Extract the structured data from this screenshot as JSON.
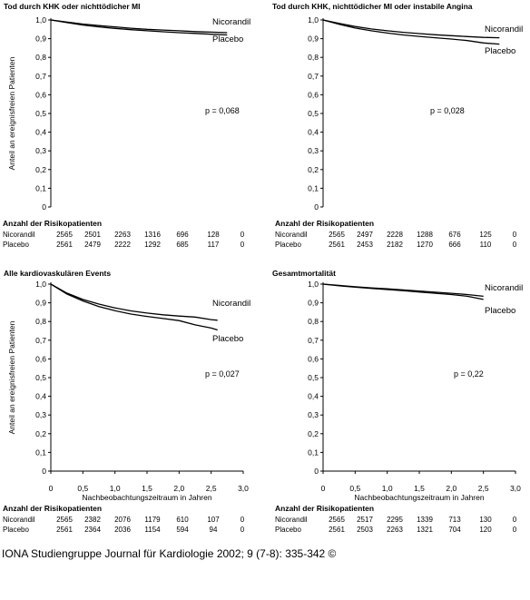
{
  "footer": "IONA Studiengruppe Journal für Kardiologie 2002; 9 (7-8): 335-342 ©",
  "chart_data": [
    {
      "type": "line",
      "title": "Tod durch KHK oder nichttödicher MI",
      "ylabel": "Anteil an ereignisfreien Patienten",
      "xlabel": "",
      "ylim": [
        0,
        1.0
      ],
      "xlim": [
        0,
        3.0
      ],
      "y_ticks": [
        "0",
        "0,1",
        "0,2",
        "0,3",
        "0,4",
        "0,5",
        "0,6",
        "0,7",
        "0,8",
        "0,9",
        "1,0"
      ],
      "x_ticks": [],
      "p_value": "p = 0,068",
      "series": [
        {
          "name": "Nicorandil",
          "x": [
            0,
            0.25,
            0.5,
            0.75,
            1.0,
            1.25,
            1.5,
            1.75,
            2.0,
            2.25,
            2.5,
            2.75
          ],
          "y": [
            1.0,
            0.989,
            0.978,
            0.97,
            0.963,
            0.956,
            0.95,
            0.946,
            0.942,
            0.938,
            0.935,
            0.932
          ]
        },
        {
          "name": "Placebo",
          "x": [
            0,
            0.25,
            0.5,
            0.75,
            1.0,
            1.25,
            1.5,
            1.75,
            2.0,
            2.25,
            2.5,
            2.75
          ],
          "y": [
            1.0,
            0.986,
            0.973,
            0.963,
            0.955,
            0.948,
            0.942,
            0.937,
            0.932,
            0.928,
            0.924,
            0.92
          ]
        }
      ],
      "risk_table": {
        "heading": "Anzahl der Risikopatienten",
        "rows": [
          {
            "label": "Nicorandil",
            "values": [
              "2565",
              "2501",
              "2263",
              "1316",
              "696",
              "128",
              "0"
            ]
          },
          {
            "label": "Placebo",
            "values": [
              "2561",
              "2479",
              "2222",
              "1292",
              "685",
              "117",
              "0"
            ]
          }
        ]
      }
    },
    {
      "type": "line",
      "title": "Tod durch KHK, nichttödicher MI oder instabile Angina",
      "ylabel": "",
      "xlabel": "",
      "ylim": [
        0,
        1.0
      ],
      "xlim": [
        0,
        3.0
      ],
      "y_ticks": [
        "0",
        "0,1",
        "0,2",
        "0,3",
        "0,4",
        "0,5",
        "0,6",
        "0,7",
        "0,8",
        "0,9",
        "1,0"
      ],
      "x_ticks": [],
      "p_value": "p = 0,028",
      "series": [
        {
          "name": "Nicorandil",
          "x": [
            0,
            0.25,
            0.5,
            0.75,
            1.0,
            1.25,
            1.5,
            1.75,
            2.0,
            2.25,
            2.5,
            2.75
          ],
          "y": [
            1.0,
            0.982,
            0.965,
            0.952,
            0.942,
            0.934,
            0.927,
            0.921,
            0.916,
            0.911,
            0.907,
            0.905
          ]
        },
        {
          "name": "Placebo",
          "x": [
            0,
            0.25,
            0.5,
            0.75,
            1.0,
            1.25,
            1.5,
            1.75,
            2.0,
            2.25,
            2.5,
            2.75
          ],
          "y": [
            1.0,
            0.977,
            0.957,
            0.942,
            0.93,
            0.92,
            0.912,
            0.905,
            0.898,
            0.89,
            0.877,
            0.871
          ]
        }
      ],
      "risk_table": {
        "heading": "Anzahl der Risikopatienten",
        "rows": [
          {
            "label": "Nicorandil",
            "values": [
              "2565",
              "2497",
              "2228",
              "1288",
              "676",
              "125",
              "0"
            ]
          },
          {
            "label": "Placebo",
            "values": [
              "2561",
              "2453",
              "2182",
              "1270",
              "666",
              "110",
              "0"
            ]
          }
        ]
      }
    },
    {
      "type": "line",
      "title": "Alle kardiovaskulären Events",
      "ylabel": "Anteil an ereignisfreien Patienten",
      "xlabel": "Nachbeobachtungszeitraum in Jahren",
      "ylim": [
        0,
        1.0
      ],
      "xlim": [
        0,
        3.0
      ],
      "y_ticks": [
        "0",
        "0,1",
        "0,2",
        "0,3",
        "0,4",
        "0,5",
        "0,6",
        "0,7",
        "0,8",
        "0,9",
        "1,0"
      ],
      "x_ticks": [
        "0",
        "0,5",
        "1,0",
        "1,5",
        "2,0",
        "2,5",
        "3,0"
      ],
      "p_value": "p = 0,027",
      "series": [
        {
          "name": "Nicorandil",
          "x": [
            0,
            0.25,
            0.5,
            0.75,
            1.0,
            1.25,
            1.5,
            1.75,
            2.0,
            2.25,
            2.5,
            2.6
          ],
          "y": [
            1.0,
            0.952,
            0.918,
            0.893,
            0.873,
            0.857,
            0.845,
            0.836,
            0.829,
            0.824,
            0.81,
            0.807
          ]
        },
        {
          "name": "Placebo",
          "x": [
            0,
            0.25,
            0.5,
            0.75,
            1.0,
            1.25,
            1.5,
            1.75,
            2.0,
            2.25,
            2.5,
            2.6
          ],
          "y": [
            1.0,
            0.947,
            0.91,
            0.88,
            0.858,
            0.84,
            0.827,
            0.816,
            0.805,
            0.782,
            0.765,
            0.755
          ]
        }
      ],
      "risk_table": {
        "heading": "Anzahl der Risikopatienten",
        "rows": [
          {
            "label": "Nicorandil",
            "values": [
              "2565",
              "2382",
              "2076",
              "1179",
              "610",
              "107",
              "0"
            ]
          },
          {
            "label": "Placebo",
            "values": [
              "2561",
              "2364",
              "2036",
              "1154",
              "594",
              "94",
              "0"
            ]
          }
        ]
      }
    },
    {
      "type": "line",
      "title": "Gesamtmortalität",
      "ylabel": "",
      "xlabel": "Nachbeobachtungszeitraum in Jahren",
      "ylim": [
        0,
        1.0
      ],
      "xlim": [
        0,
        3.0
      ],
      "y_ticks": [
        "0",
        "0,1",
        "0,2",
        "0,3",
        "0,4",
        "0,5",
        "0,6",
        "0,7",
        "0,8",
        "0,9",
        "1,0"
      ],
      "x_ticks": [
        "0",
        "0,5",
        "1,0",
        "1,5",
        "2,0",
        "2,5",
        "3,0"
      ],
      "p_value": "p = 0,22",
      "series": [
        {
          "name": "Nicorandil",
          "x": [
            0,
            0.25,
            0.5,
            0.75,
            1.0,
            1.25,
            1.5,
            1.75,
            2.0,
            2.25,
            2.5
          ],
          "y": [
            1.0,
            0.993,
            0.986,
            0.98,
            0.975,
            0.969,
            0.963,
            0.957,
            0.951,
            0.944,
            0.935
          ]
        },
        {
          "name": "Placebo",
          "x": [
            0,
            0.25,
            0.5,
            0.75,
            1.0,
            1.25,
            1.5,
            1.75,
            2.0,
            2.25,
            2.5
          ],
          "y": [
            1.0,
            0.991,
            0.984,
            0.977,
            0.971,
            0.965,
            0.958,
            0.951,
            0.944,
            0.935,
            0.918
          ]
        }
      ],
      "risk_table": {
        "heading": "Anzahl der Risikopatienten",
        "rows": [
          {
            "label": "Nicorandil",
            "values": [
              "2565",
              "2517",
              "2295",
              "1339",
              "713",
              "130",
              "0"
            ]
          },
          {
            "label": "Placebo",
            "values": [
              "2561",
              "2503",
              "2263",
              "1321",
              "704",
              "120",
              "0"
            ]
          }
        ]
      }
    }
  ]
}
